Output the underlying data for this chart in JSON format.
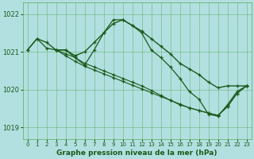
{
  "background_color": "#b2e0e0",
  "grid_color": "#5aaa5a",
  "line_color": "#1a5a1a",
  "xlabel": "Graphe pression niveau de la mer (hPa)",
  "xlim": [
    -0.5,
    23.5
  ],
  "ylim": [
    1018.7,
    1022.3
  ],
  "yticks": [
    1019,
    1020,
    1021,
    1022
  ],
  "xticks": [
    0,
    1,
    2,
    3,
    4,
    5,
    6,
    7,
    8,
    9,
    10,
    11,
    12,
    13,
    14,
    15,
    16,
    17,
    18,
    19,
    20,
    21,
    22,
    23
  ],
  "series": [
    {
      "x": [
        0,
        1,
        2,
        3,
        4,
        5,
        6,
        7,
        8,
        9,
        10,
        11,
        12,
        13,
        14,
        15,
        16,
        17,
        18,
        19,
        20,
        21,
        22,
        23
      ],
      "y": [
        1021.05,
        1021.35,
        1021.25,
        1021.05,
        1021.05,
        1020.9,
        1021.0,
        1021.25,
        1021.5,
        1021.75,
        1021.85,
        1021.7,
        1021.55,
        1021.35,
        1021.15,
        1020.95,
        1020.7,
        1020.55,
        1020.4,
        1020.2,
        1020.05,
        1020.1,
        1020.1,
        1020.1
      ],
      "lw": 1.0
    },
    {
      "x": [
        0,
        1,
        2,
        3,
        4,
        5,
        6,
        7,
        8,
        9,
        10,
        11,
        12,
        13,
        14,
        15,
        16,
        17,
        18,
        19,
        20,
        21,
        22,
        23
      ],
      "y": [
        1021.05,
        1021.35,
        1021.1,
        1021.05,
        1021.05,
        1020.85,
        1020.65,
        1021.05,
        1021.5,
        1021.85,
        1021.85,
        1021.7,
        1021.5,
        1021.05,
        1020.85,
        1020.6,
        1020.3,
        1019.95,
        1019.75,
        1019.35,
        1019.3,
        1019.6,
        1019.95,
        1020.1
      ],
      "lw": 0.9
    },
    {
      "x": [
        3,
        4,
        5,
        6,
        7,
        8,
        9,
        10,
        11,
        12,
        13,
        14,
        15,
        16,
        17,
        18,
        19,
        20,
        21,
        22,
        23
      ],
      "y": [
        1021.05,
        1020.95,
        1020.85,
        1020.7,
        1020.6,
        1020.5,
        1020.4,
        1020.3,
        1020.2,
        1020.1,
        1019.98,
        1019.85,
        1019.72,
        1019.6,
        1019.52,
        1019.45,
        1019.38,
        1019.32,
        1019.55,
        1019.9,
        1020.1
      ],
      "lw": 0.8
    },
    {
      "x": [
        3,
        4,
        5,
        6,
        7,
        8,
        9,
        10,
        11,
        12,
        13,
        14,
        15,
        16,
        17,
        18,
        19,
        20,
        21,
        22,
        23
      ],
      "y": [
        1021.05,
        1020.9,
        1020.75,
        1020.62,
        1020.52,
        1020.42,
        1020.32,
        1020.22,
        1020.12,
        1020.02,
        1019.92,
        1019.82,
        1019.72,
        1019.62,
        1019.52,
        1019.45,
        1019.38,
        1019.32,
        1019.55,
        1019.9,
        1020.1
      ],
      "lw": 0.8
    }
  ]
}
